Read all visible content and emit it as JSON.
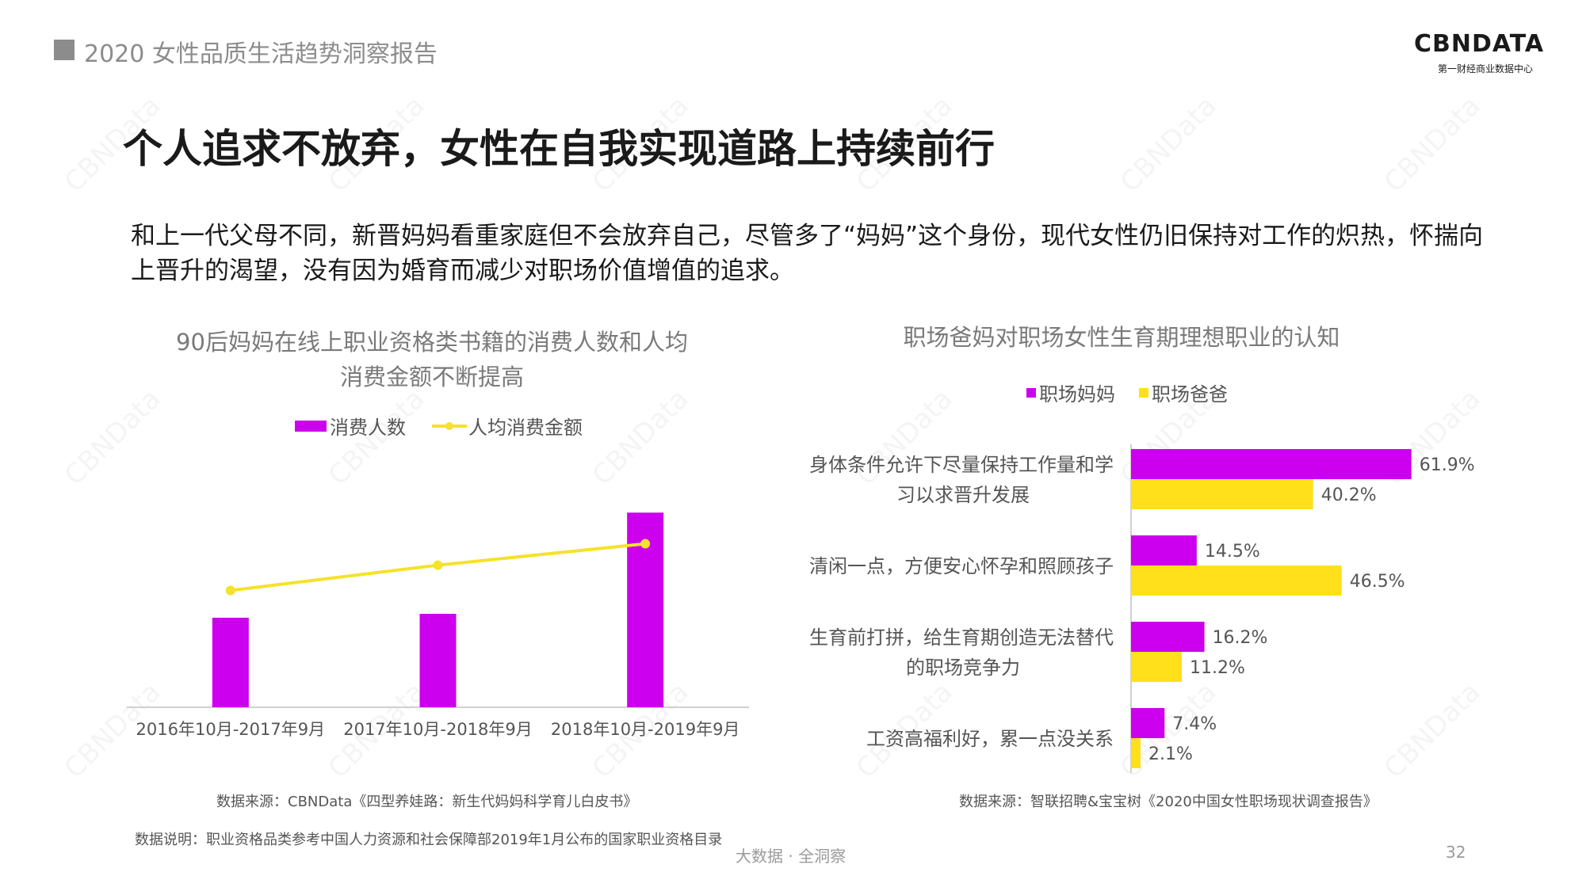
{
  "header": {
    "report_title": "2020 女性品质生活趋势洞察报告"
  },
  "logo": {
    "name": "CBNDATA",
    "subtitle": "第一财经商业数据中心"
  },
  "watermark": "CBNData",
  "main_title": "个人追求不放弃，女性在自我实现道路上持续前行",
  "intro_text": "和上一代父母不同，新晋妈妈看重家庭但不会放弃自己，尽管多了“妈妈”这个身份，现代女性仍旧保持对工作的炽热，怀揣向上晋升的渴望，没有因为婚育而减少对职场价值增值的追求。",
  "chart_data": [
    {
      "type": "bar",
      "title_lines": [
        "90后妈妈在线上职业资格类书籍的消费人数和人均",
        "消费金额不断提高"
      ],
      "categories": [
        "2016年10月-2017年9月",
        "2017年10月-2018年9月",
        "2018年10月-2019年9月"
      ],
      "series": [
        {
          "name": "消费人数",
          "kind": "bar",
          "color": "#cc00ee",
          "values": [
            0.46,
            0.48,
            1.0
          ]
        },
        {
          "name": "人均消费金额",
          "kind": "line",
          "color": "#f5e22a",
          "values": [
            0.6,
            0.73,
            0.84
          ]
        }
      ],
      "ylim": [
        0,
        1.18
      ],
      "grid": false,
      "legend": "top-center",
      "source": "数据来源：CBNData《四型养娃路：新生代妈妈科学育儿白皮书》",
      "note": "数据说明：职业资格品类参考中国人力资源和社会保障部2019年1月公布的国家职业资格目录"
    },
    {
      "type": "bar",
      "orientation": "horizontal",
      "title": "职场爸妈对职场女性生育期理想职业的认知",
      "categories": [
        [
          "身体条件允许下尽量保持工作量和学",
          "习以求晋升发展"
        ],
        [
          "清闲一点，方便安心怀孕和照顾孩子"
        ],
        [
          "生育前打拼，给生育期创造无法替代",
          "的职场竞争力"
        ],
        [
          "工资高福利好，累一点没关系"
        ]
      ],
      "series": [
        {
          "name": "职场妈妈",
          "color": "#cc00ee",
          "values": [
            61.9,
            14.5,
            16.2,
            7.4
          ],
          "labels": [
            "61.9%",
            "14.5%",
            "16.2%",
            "7.4%"
          ]
        },
        {
          "name": "职场爸爸",
          "color": "#ffe01a",
          "values": [
            40.2,
            46.5,
            11.2,
            2.1
          ],
          "labels": [
            "40.2%",
            "46.5%",
            "11.2%",
            "2.1%"
          ]
        }
      ],
      "xlim": [
        0,
        70
      ],
      "grid": false,
      "legend": "top-center",
      "source": "数据来源：智联招聘&宝宝树《2020中国女性职场现状调查报告》"
    }
  ],
  "footer": {
    "tagline": "大数据 · 全洞察",
    "page": "32"
  }
}
